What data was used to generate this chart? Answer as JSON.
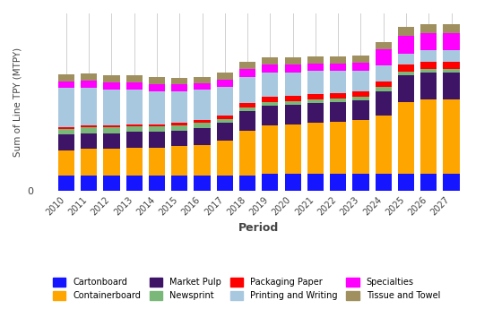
{
  "years": [
    2010,
    2011,
    2012,
    2013,
    2014,
    2015,
    2016,
    2017,
    2018,
    2019,
    2020,
    2021,
    2022,
    2023,
    2024,
    2025,
    2026,
    2027
  ],
  "categories": [
    "Cartonboard",
    "Containerboard",
    "Market Pulp",
    "Newsprint",
    "Packaging Paper",
    "Printing and Writing",
    "Specialties",
    "Tissue and Towel"
  ],
  "colors": {
    "Cartonboard": "#1515FF",
    "Containerboard": "#FFA500",
    "Market Pulp": "#3D1466",
    "Newsprint": "#7AB87A",
    "Packaging Paper": "#FF0000",
    "Printing and Writing": "#A8C8E0",
    "Specialties": "#FF00FF",
    "Tissue and Towel": "#A09060"
  },
  "data": {
    "Cartonboard": [
      2.8,
      2.8,
      2.8,
      2.8,
      2.8,
      2.8,
      2.8,
      2.8,
      2.8,
      3.0,
      3.0,
      3.0,
      3.0,
      3.0,
      3.0,
      3.0,
      3.0,
      3.0
    ],
    "Containerboard": [
      4.5,
      4.8,
      4.8,
      5.0,
      5.0,
      5.2,
      5.5,
      6.2,
      8.0,
      8.8,
      9.0,
      9.3,
      9.5,
      9.8,
      10.5,
      13.0,
      13.5,
      13.5
    ],
    "Market Pulp": [
      2.8,
      2.8,
      2.8,
      2.8,
      2.8,
      2.8,
      3.0,
      3.2,
      3.5,
      3.5,
      3.5,
      3.5,
      3.5,
      3.5,
      4.5,
      4.8,
      4.8,
      4.8
    ],
    "Newsprint": [
      1.0,
      1.0,
      1.0,
      1.0,
      1.0,
      1.0,
      0.9,
      0.7,
      0.7,
      0.7,
      0.7,
      0.7,
      0.7,
      0.7,
      0.7,
      0.7,
      0.7,
      0.7
    ],
    "Packaging Paper": [
      0.4,
      0.4,
      0.4,
      0.4,
      0.4,
      0.4,
      0.5,
      0.7,
      0.8,
      0.9,
      0.9,
      0.9,
      0.9,
      0.9,
      1.0,
      1.3,
      1.3,
      1.3
    ],
    "Printing and Writing": [
      7.0,
      6.8,
      6.5,
      6.3,
      6.0,
      5.8,
      5.5,
      5.2,
      4.8,
      4.5,
      4.3,
      4.2,
      4.0,
      3.8,
      3.0,
      2.0,
      2.0,
      2.0
    ],
    "Specialties": [
      1.2,
      1.3,
      1.2,
      1.2,
      1.3,
      1.2,
      1.2,
      1.2,
      1.4,
      1.4,
      1.4,
      1.4,
      1.4,
      1.4,
      2.8,
      3.2,
      3.2,
      3.2
    ],
    "Tissue and Towel": [
      1.3,
      1.3,
      1.3,
      1.3,
      1.3,
      1.1,
      1.1,
      1.3,
      1.3,
      1.3,
      1.3,
      1.3,
      1.3,
      1.3,
      1.3,
      1.6,
      1.6,
      1.6
    ]
  },
  "xlabel": "Period",
  "ylabel": "Sum of Line TPY (MTPY)",
  "background_color": "#FFFFFF",
  "grid_color": "#D0D0D0",
  "legend_order": [
    "Cartonboard",
    "Containerboard",
    "Market Pulp",
    "Newsprint",
    "Packaging Paper",
    "Printing and Writing",
    "Specialties",
    "Tissue and Towel"
  ]
}
